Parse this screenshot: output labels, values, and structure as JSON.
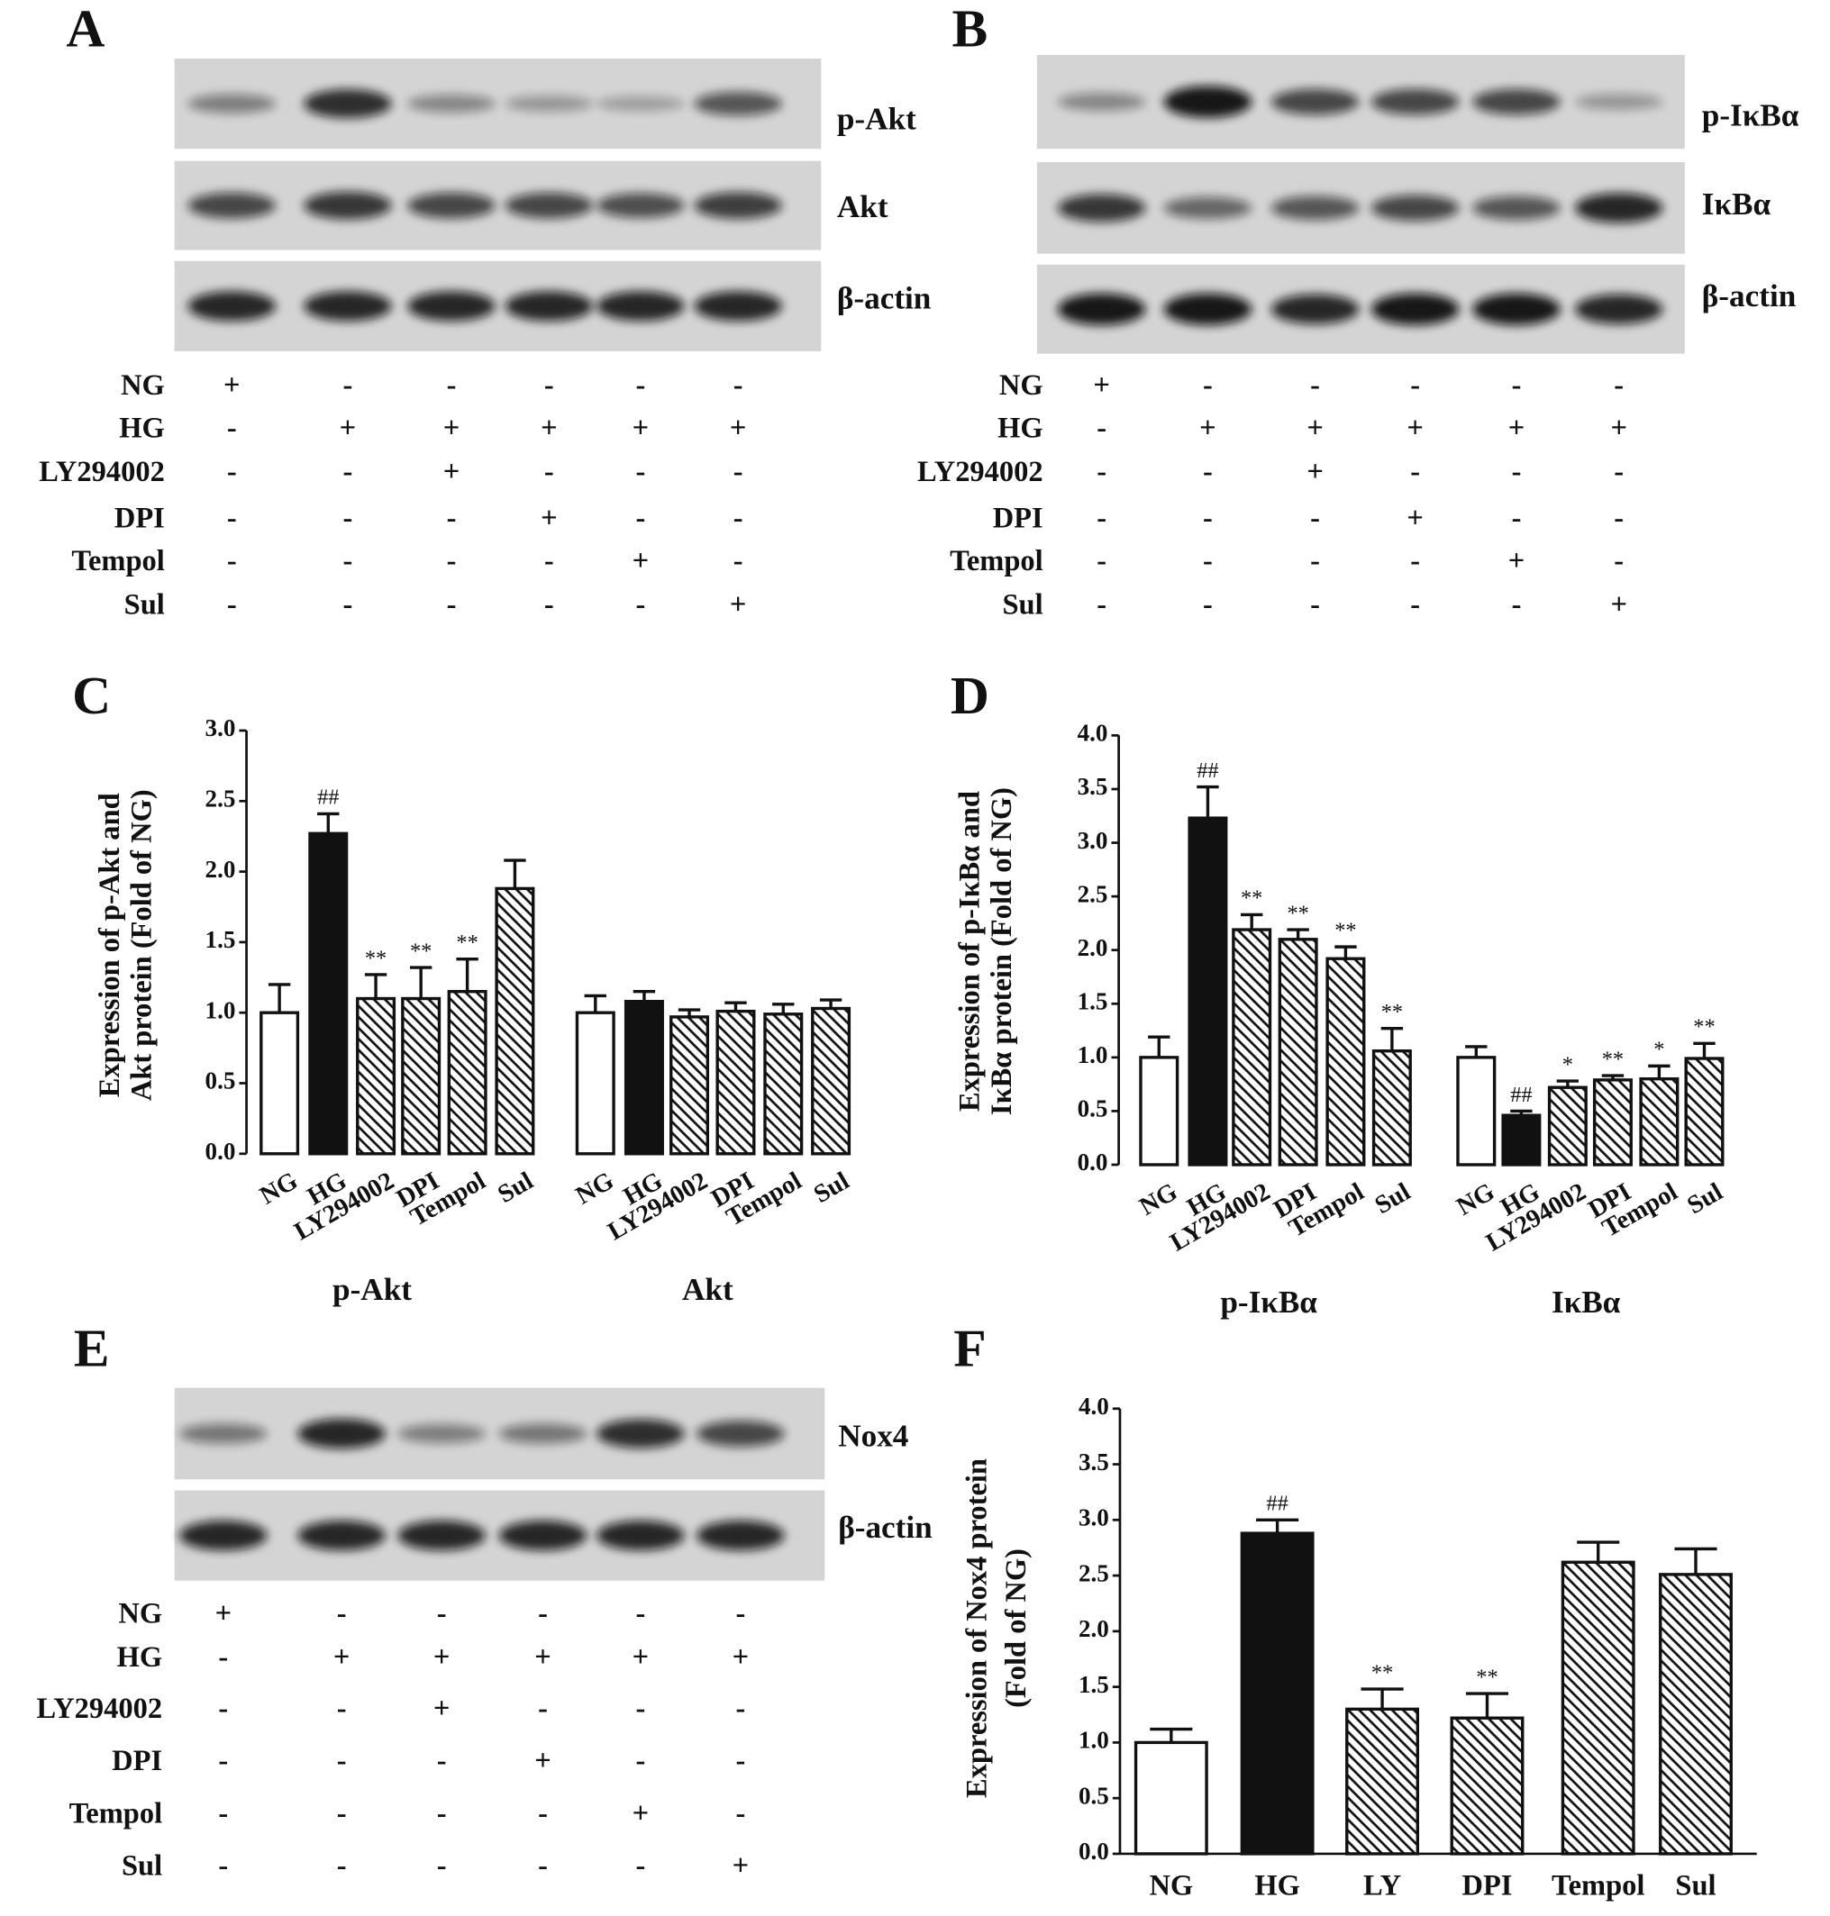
{
  "blots": [
    {
      "letter": "A",
      "proteins": [
        "p-Akt",
        "Akt",
        "β-actin"
      ],
      "treatments": [
        {
          "name": "NG",
          "signs": [
            "+",
            "-",
            "-",
            "-",
            "-",
            "-"
          ]
        },
        {
          "name": "HG",
          "signs": [
            "-",
            "+",
            "+",
            "+",
            "+",
            "+"
          ]
        },
        {
          "name": "LY294002",
          "signs": [
            "-",
            "-",
            "+",
            "-",
            "-",
            "-"
          ]
        },
        {
          "name": "DPI",
          "signs": [
            "-",
            "-",
            "-",
            "+",
            "-",
            "-"
          ]
        },
        {
          "name": "Tempol",
          "signs": [
            "-",
            "-",
            "-",
            "-",
            "+",
            "-"
          ]
        },
        {
          "name": "Sul",
          "signs": [
            "-",
            "-",
            "-",
            "-",
            "-",
            "+"
          ]
        }
      ]
    },
    {
      "letter": "B",
      "proteins": [
        "p-IκBα",
        "IκBα",
        "β-actin"
      ],
      "treatments": [
        {
          "name": "NG",
          "signs": [
            "+",
            "-",
            "-",
            "-",
            "-",
            "-"
          ]
        },
        {
          "name": "HG",
          "signs": [
            "-",
            "+",
            "+",
            "+",
            "+",
            "+"
          ]
        },
        {
          "name": "LY294002",
          "signs": [
            "-",
            "-",
            "+",
            "-",
            "-",
            "-"
          ]
        },
        {
          "name": "DPI",
          "signs": [
            "-",
            "-",
            "-",
            "+",
            "-",
            "-"
          ]
        },
        {
          "name": "Tempol",
          "signs": [
            "-",
            "-",
            "-",
            "-",
            "+",
            "-"
          ]
        },
        {
          "name": "Sul",
          "signs": [
            "-",
            "-",
            "-",
            "-",
            "-",
            "+"
          ]
        }
      ]
    },
    {
      "letter": "E",
      "proteins": [
        "Nox4",
        "β-actin"
      ],
      "treatments": [
        {
          "name": "NG",
          "signs": [
            "+",
            "-",
            "-",
            "-",
            "-",
            "-"
          ]
        },
        {
          "name": "HG",
          "signs": [
            "-",
            "+",
            "+",
            "+",
            "+",
            "+"
          ]
        },
        {
          "name": "LY294002",
          "signs": [
            "-",
            "-",
            "+",
            "-",
            "-",
            "-"
          ]
        },
        {
          "name": "DPI",
          "signs": [
            "-",
            "-",
            "-",
            "+",
            "-",
            "-"
          ]
        },
        {
          "name": "Tempol",
          "signs": [
            "-",
            "-",
            "-",
            "-",
            "+",
            "-"
          ]
        },
        {
          "name": "Sul",
          "signs": [
            "-",
            "-",
            "-",
            "-",
            "-",
            "+"
          ]
        }
      ]
    }
  ],
  "chart_data": [
    {
      "type": "bar",
      "letter": "C",
      "ylabel": [
        "Expression of p-Akt and",
        "Akt protein (Fold of NG)"
      ],
      "ylim": [
        0,
        3
      ],
      "yticks": [
        {
          "value": 0,
          "label": "0.0"
        },
        {
          "value": 0.5,
          "label": "0.5"
        },
        {
          "value": 1,
          "label": "1.0"
        },
        {
          "value": 1.5,
          "label": "1.5"
        },
        {
          "value": 2,
          "label": "2.0"
        },
        {
          "value": 2.5,
          "label": "2.5"
        },
        {
          "value": 3,
          "label": "3.0"
        }
      ],
      "categories": [
        "NG",
        "HG",
        "LY294002",
        "DPI",
        "Tempol",
        "Sul"
      ],
      "fills": [
        "white",
        "black",
        "hatch",
        "hatch",
        "hatch",
        "hatch"
      ],
      "groups": [
        {
          "name": "p-Akt",
          "values": [
            1.0,
            2.27,
            1.1,
            1.1,
            1.15,
            1.88
          ],
          "errors": [
            0.2,
            0.14,
            0.17,
            0.22,
            0.23,
            0.2
          ],
          "annotations": [
            null,
            "##",
            "**",
            "**",
            "**",
            null
          ]
        },
        {
          "name": "Akt",
          "values": [
            1.0,
            1.08,
            0.97,
            1.01,
            0.99,
            1.03
          ],
          "errors": [
            0.12,
            0.07,
            0.05,
            0.06,
            0.07,
            0.06
          ],
          "annotations": [
            null,
            null,
            null,
            null,
            null,
            null
          ]
        }
      ]
    },
    {
      "type": "bar",
      "letter": "D",
      "ylabel": [
        "Expression of p-IκBα and",
        "IκBα protein (Fold of NG)"
      ],
      "ylim": [
        0,
        4
      ],
      "yticks": [
        {
          "value": 0,
          "label": "0.0"
        },
        {
          "value": 0.5,
          "label": "0.5"
        },
        {
          "value": 1,
          "label": "1.0"
        },
        {
          "value": 1.5,
          "label": "1.5"
        },
        {
          "value": 2,
          "label": "2.0"
        },
        {
          "value": 2.5,
          "label": "2.5"
        },
        {
          "value": 3,
          "label": "3.0"
        },
        {
          "value": 3.5,
          "label": "3.5"
        },
        {
          "value": 4,
          "label": "4.0"
        }
      ],
      "categories": [
        "NG",
        "HG",
        "LY294002",
        "DPI",
        "Tempol",
        "Sul"
      ],
      "fills": [
        "white",
        "black",
        "hatch",
        "hatch",
        "hatch",
        "hatch"
      ],
      "groups": [
        {
          "name": "p-IκBα",
          "values": [
            1.0,
            3.23,
            2.19,
            2.1,
            1.92,
            1.06
          ],
          "errors": [
            0.19,
            0.29,
            0.14,
            0.09,
            0.11,
            0.21
          ],
          "annotations": [
            null,
            "##",
            "**",
            "**",
            "**",
            "**"
          ]
        },
        {
          "name": "IκBα",
          "values": [
            1.0,
            0.46,
            0.72,
            0.79,
            0.8,
            0.99
          ],
          "errors": [
            0.1,
            0.04,
            0.06,
            0.04,
            0.12,
            0.14
          ],
          "annotations": [
            null,
            "##",
            "*",
            "**",
            "*",
            "**"
          ]
        }
      ]
    },
    {
      "type": "bar",
      "letter": "F",
      "ylabel": [
        "Expression of Nox4 protein",
        "(Fold of NG)"
      ],
      "ylim": [
        0,
        4
      ],
      "yticks": [
        {
          "value": 0,
          "label": "0.0"
        },
        {
          "value": 0.5,
          "label": "0.5"
        },
        {
          "value": 1,
          "label": "1.0"
        },
        {
          "value": 1.5,
          "label": "1.5"
        },
        {
          "value": 2,
          "label": "2.0"
        },
        {
          "value": 2.5,
          "label": "2.5"
        },
        {
          "value": 3,
          "label": "3.0"
        },
        {
          "value": 3.5,
          "label": "3.5"
        },
        {
          "value": 4,
          "label": "4.0"
        }
      ],
      "categories": [
        "NG",
        "HG",
        "LY",
        "DPI",
        "Tempol",
        "Sul"
      ],
      "fills": [
        "white",
        "black",
        "hatch",
        "hatch",
        "hatch",
        "hatch"
      ],
      "groups": [
        {
          "values": [
            1.0,
            2.88,
            1.3,
            1.22,
            2.62,
            2.51
          ],
          "errors": [
            0.12,
            0.12,
            0.18,
            0.22,
            0.18,
            0.23
          ],
          "annotations": [
            null,
            "##",
            "**",
            "**",
            null,
            null
          ]
        }
      ]
    }
  ]
}
